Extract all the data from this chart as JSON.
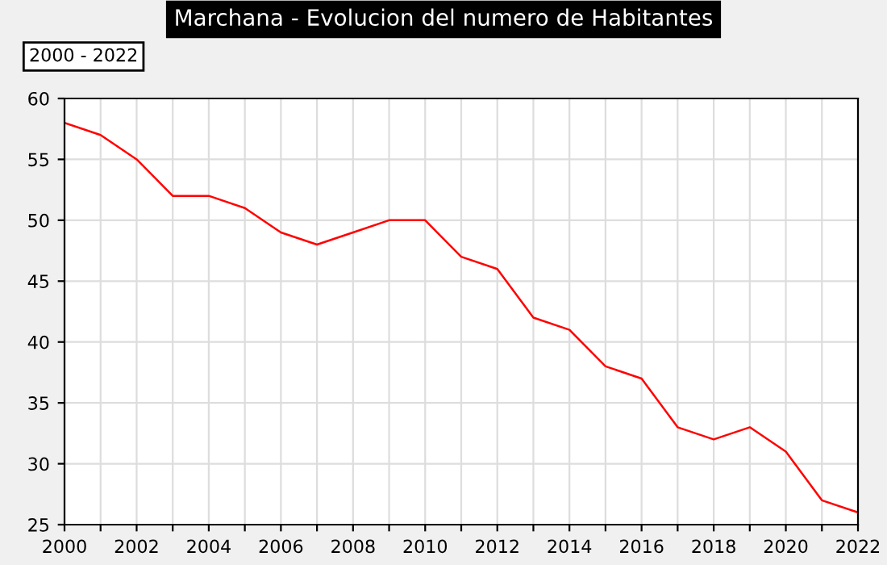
{
  "chart_data": {
    "type": "line",
    "title": "Marchana - Evolucion del numero de Habitantes",
    "subtitle": "2000 - 2022",
    "x": [
      2000,
      2001,
      2002,
      2003,
      2004,
      2005,
      2006,
      2007,
      2008,
      2009,
      2010,
      2011,
      2012,
      2013,
      2014,
      2015,
      2016,
      2017,
      2018,
      2019,
      2020,
      2021,
      2022
    ],
    "series": [
      {
        "color": "#ff0000",
        "values": [
          58,
          57,
          55,
          52,
          52,
          51,
          49,
          48,
          49,
          50,
          50,
          47,
          46,
          42,
          41,
          38,
          37,
          33,
          32,
          33,
          31,
          27,
          26
        ]
      }
    ],
    "xlim": [
      2000,
      2022
    ],
    "xticks": [
      2000,
      {
        "value": 2001,
        "label": null
      },
      2002,
      {
        "value": 2003,
        "label": null
      },
      2004,
      {
        "value": 2005,
        "label": null
      },
      2006,
      {
        "value": 2007,
        "label": null
      },
      2008,
      {
        "value": 2009,
        "label": null
      },
      2010,
      {
        "value": 2011,
        "label": null
      },
      2012,
      {
        "value": 2013,
        "label": null
      },
      2014,
      {
        "value": 2015,
        "label": null
      },
      2016,
      {
        "value": 2017,
        "label": null
      },
      2018,
      {
        "value": 2019,
        "label": null
      },
      2020,
      {
        "value": 2021,
        "label": null
      },
      2022
    ],
    "ylim": [
      25,
      60
    ],
    "yticks": [
      25,
      30,
      35,
      40,
      45,
      50,
      55,
      60
    ],
    "grid": true,
    "marker": "none",
    "line_style": "solid"
  }
}
